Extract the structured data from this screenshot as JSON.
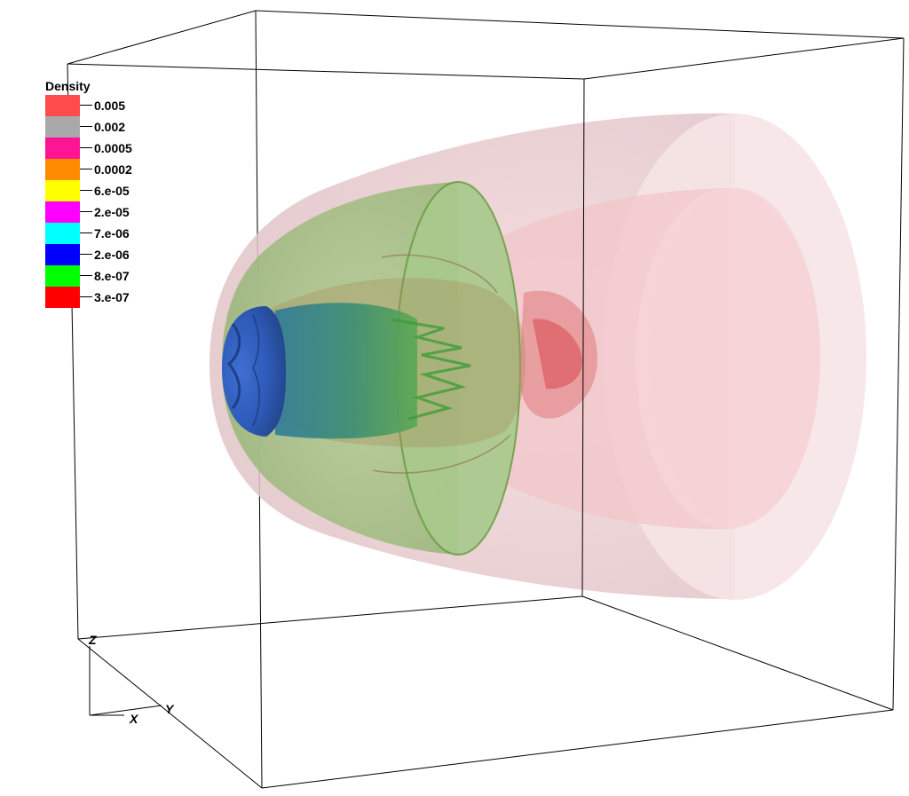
{
  "legend": {
    "title": "Density",
    "entries": [
      {
        "label": "0.005",
        "color": "#ff4b4b"
      },
      {
        "label": "0.002",
        "color": "#a9a9a9"
      },
      {
        "label": "0.0005",
        "color": "#ff1493"
      },
      {
        "label": "0.0002",
        "color": "#ff8c00"
      },
      {
        "label": "6.e-05",
        "color": "#ffff00"
      },
      {
        "label": "2.e-05",
        "color": "#ff00ff"
      },
      {
        "label": "7.e-06",
        "color": "#00ffff"
      },
      {
        "label": "2.e-06",
        "color": "#0000ff"
      },
      {
        "label": "8.e-07",
        "color": "#00ff00"
      },
      {
        "label": "3.e-07",
        "color": "#ff0000"
      }
    ]
  },
  "axes": {
    "x": "X",
    "y": "Y",
    "z": "Z"
  }
}
